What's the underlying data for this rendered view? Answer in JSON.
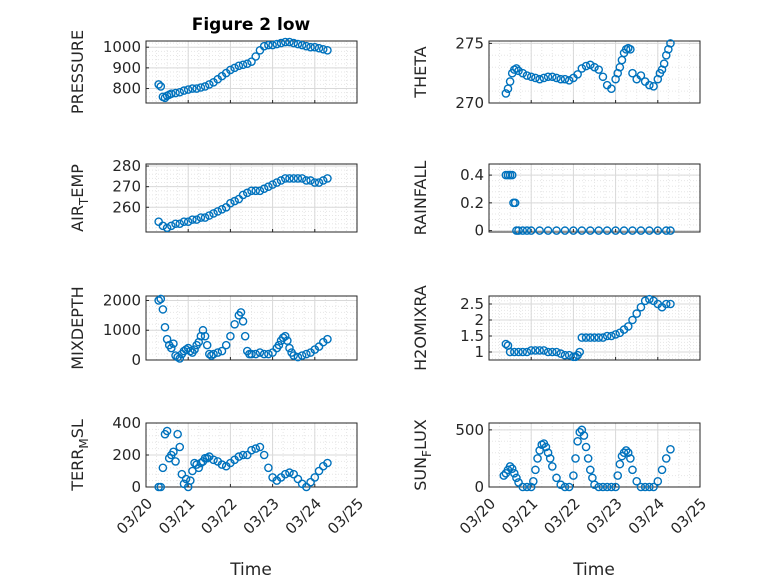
{
  "chart_data": {
    "type": "scatter",
    "title": "Figure 2 low",
    "xlabel": "Time",
    "marker": "open-circle",
    "marker_color": "#0072BD",
    "grid": true,
    "minor_grid": true,
    "x_ticks": [
      "03/20",
      "03/21",
      "03/22",
      "03/23",
      "03/24",
      "03/25"
    ],
    "panels": [
      {
        "id": "pressure",
        "ylabel": "PRESSURE",
        "ylim": [
          730,
          1030
        ],
        "yticks": [
          "800",
          "900",
          "1000"
        ],
        "ytick_values": [
          800,
          900,
          1000
        ],
        "xlim": [
          0,
          5
        ],
        "x": [
          0.3,
          0.35,
          0.4,
          0.45,
          0.5,
          0.55,
          0.6,
          0.7,
          0.8,
          0.9,
          1.0,
          1.1,
          1.2,
          1.3,
          1.4,
          1.5,
          1.6,
          1.7,
          1.8,
          1.9,
          2.0,
          2.1,
          2.2,
          2.3,
          2.4,
          2.5,
          2.6,
          2.7,
          2.8,
          2.9,
          3.0,
          3.1,
          3.2,
          3.3,
          3.4,
          3.5,
          3.6,
          3.7,
          3.8,
          3.9,
          4.0,
          4.1,
          4.2,
          4.3
        ],
        "y": [
          820,
          810,
          760,
          755,
          765,
          770,
          775,
          778,
          782,
          790,
          795,
          800,
          800,
          805,
          810,
          820,
          830,
          845,
          860,
          875,
          890,
          900,
          910,
          915,
          920,
          930,
          955,
          985,
          1005,
          1010,
          1010,
          1015,
          1020,
          1025,
          1025,
          1020,
          1015,
          1010,
          1005,
          1000,
          1000,
          995,
          990,
          985
        ]
      },
      {
        "id": "theta",
        "ylabel": "THETA",
        "ylim": [
          270,
          275.2
        ],
        "yticks": [
          "270",
          "275"
        ],
        "ytick_values": [
          270,
          275
        ],
        "xlim": [
          0,
          5
        ],
        "x": [
          0.4,
          0.45,
          0.5,
          0.55,
          0.6,
          0.65,
          0.7,
          0.8,
          0.9,
          1.0,
          1.1,
          1.2,
          1.3,
          1.4,
          1.5,
          1.6,
          1.7,
          1.8,
          1.9,
          2.0,
          2.1,
          2.2,
          2.3,
          2.4,
          2.5,
          2.6,
          2.7,
          2.8,
          2.9,
          3.0,
          3.05,
          3.1,
          3.15,
          3.2,
          3.25,
          3.3,
          3.35,
          3.4,
          3.5,
          3.6,
          3.7,
          3.8,
          3.9,
          4.0,
          4.05,
          4.1,
          4.15,
          4.2,
          4.25,
          4.3
        ],
        "y": [
          270.8,
          271.2,
          271.8,
          272.5,
          272.8,
          272.9,
          272.7,
          272.5,
          272.3,
          272.2,
          272.1,
          272.0,
          272.1,
          272.2,
          272.2,
          272.1,
          272.0,
          272.0,
          271.9,
          272.1,
          272.4,
          272.9,
          273.1,
          273.2,
          273.0,
          272.8,
          272.2,
          271.5,
          271.2,
          272.0,
          272.5,
          273.0,
          273.6,
          274.2,
          274.5,
          274.6,
          274.5,
          272.5,
          272.0,
          272.3,
          271.8,
          271.5,
          271.4,
          272.0,
          272.5,
          272.8,
          273.3,
          274.0,
          274.5,
          275.0
        ]
      },
      {
        "id": "airtemp",
        "ylabel": "AIR_TEMP",
        "ylim": [
          248,
          281
        ],
        "yticks": [
          "260",
          "270",
          "280"
        ],
        "ytick_values": [
          260,
          270,
          280
        ],
        "xlim": [
          0,
          5
        ],
        "x": [
          0.3,
          0.4,
          0.5,
          0.6,
          0.7,
          0.8,
          0.9,
          1.0,
          1.1,
          1.2,
          1.3,
          1.4,
          1.5,
          1.6,
          1.7,
          1.8,
          1.9,
          2.0,
          2.1,
          2.2,
          2.3,
          2.4,
          2.5,
          2.6,
          2.7,
          2.8,
          2.9,
          3.0,
          3.1,
          3.2,
          3.3,
          3.4,
          3.5,
          3.6,
          3.7,
          3.8,
          3.9,
          4.0,
          4.1,
          4.2,
          4.3
        ],
        "y": [
          253,
          251,
          250,
          251,
          252,
          252,
          253,
          253,
          254,
          254,
          255,
          255,
          256,
          257,
          258,
          259,
          260,
          262,
          263,
          264,
          266,
          267,
          268,
          268,
          268,
          269,
          270,
          271,
          272,
          273,
          274,
          274,
          274,
          274,
          274,
          273,
          273,
          272,
          272,
          273,
          274
        ]
      },
      {
        "id": "rainfall",
        "ylabel": "RAINFALL",
        "ylim": [
          -0.01,
          0.48
        ],
        "yticks": [
          "0",
          "0.2",
          "0.4"
        ],
        "ytick_values": [
          0,
          0.2,
          0.4
        ],
        "xlim": [
          0,
          5
        ],
        "x": [
          0.4,
          0.45,
          0.5,
          0.55,
          0.58,
          0.62,
          0.65,
          0.7,
          0.8,
          0.9,
          1.0,
          1.2,
          1.4,
          1.6,
          1.8,
          2.0,
          2.2,
          2.4,
          2.6,
          2.8,
          3.0,
          3.2,
          3.4,
          3.6,
          3.8,
          4.0,
          4.2,
          4.3
        ],
        "y": [
          0.4,
          0.4,
          0.4,
          0.4,
          0.2,
          0.2,
          0,
          0,
          0,
          0,
          0,
          0,
          0,
          0,
          0,
          0,
          0,
          0,
          0,
          0,
          0,
          0,
          0,
          0,
          0,
          0,
          0,
          0
        ]
      },
      {
        "id": "mixdepth",
        "ylabel": "MIXDEPTH",
        "ylim": [
          0,
          2150
        ],
        "yticks": [
          "0",
          "1000",
          "2000"
        ],
        "ytick_values": [
          0,
          1000,
          2000
        ],
        "xlim": [
          0,
          5
        ],
        "x": [
          0.3,
          0.35,
          0.4,
          0.45,
          0.5,
          0.55,
          0.6,
          0.65,
          0.7,
          0.75,
          0.8,
          0.85,
          0.9,
          0.95,
          1.0,
          1.05,
          1.1,
          1.15,
          1.2,
          1.25,
          1.3,
          1.35,
          1.4,
          1.45,
          1.5,
          1.55,
          1.6,
          1.7,
          1.8,
          1.9,
          2.0,
          2.1,
          2.2,
          2.25,
          2.3,
          2.35,
          2.4,
          2.45,
          2.5,
          2.6,
          2.7,
          2.8,
          2.9,
          3.0,
          3.1,
          3.15,
          3.2,
          3.25,
          3.3,
          3.35,
          3.4,
          3.45,
          3.5,
          3.6,
          3.7,
          3.8,
          3.9,
          4.0,
          4.1,
          4.2,
          4.3
        ],
        "y": [
          2000,
          2050,
          1700,
          1100,
          700,
          500,
          400,
          550,
          150,
          100,
          50,
          200,
          300,
          350,
          400,
          300,
          250,
          350,
          500,
          600,
          800,
          1000,
          800,
          500,
          200,
          150,
          200,
          250,
          300,
          500,
          800,
          1200,
          1500,
          1600,
          1300,
          800,
          300,
          200,
          200,
          200,
          250,
          200,
          200,
          250,
          400,
          500,
          650,
          750,
          800,
          650,
          400,
          250,
          150,
          100,
          150,
          200,
          250,
          350,
          450,
          600,
          700
        ]
      },
      {
        "id": "h2omixra",
        "ylabel": "H2OMIXRA",
        "ylim": [
          0.75,
          2.75
        ],
        "yticks": [
          "1",
          "1.5",
          "2",
          "2.5"
        ],
        "ytick_values": [
          1,
          1.5,
          2,
          2.5
        ],
        "xlim": [
          0,
          5
        ],
        "x": [
          0.4,
          0.45,
          0.5,
          0.6,
          0.7,
          0.8,
          0.9,
          1.0,
          1.1,
          1.2,
          1.3,
          1.4,
          1.5,
          1.6,
          1.7,
          1.8,
          1.9,
          2.0,
          2.05,
          2.1,
          2.15,
          2.2,
          2.3,
          2.4,
          2.5,
          2.6,
          2.7,
          2.8,
          2.9,
          3.0,
          3.1,
          3.2,
          3.3,
          3.4,
          3.5,
          3.6,
          3.7,
          3.8,
          3.9,
          4.0,
          4.1,
          4.2,
          4.3
        ],
        "y": [
          1.25,
          1.2,
          1.0,
          1.0,
          1.0,
          1.0,
          1.0,
          1.05,
          1.05,
          1.05,
          1.05,
          1.0,
          1.0,
          1.0,
          0.95,
          0.9,
          0.9,
          0.85,
          0.85,
          0.9,
          1.0,
          1.45,
          1.45,
          1.45,
          1.45,
          1.45,
          1.45,
          1.5,
          1.5,
          1.55,
          1.6,
          1.7,
          1.8,
          2.0,
          2.2,
          2.4,
          2.6,
          2.65,
          2.6,
          2.5,
          2.4,
          2.5,
          2.5
        ]
      },
      {
        "id": "terrmsl",
        "ylabel": "TERR_MSL",
        "ylim": [
          0,
          400
        ],
        "yticks": [
          "0",
          "200",
          "400"
        ],
        "ytick_values": [
          0,
          200,
          400
        ],
        "xlim": [
          0,
          5
        ],
        "x": [
          0.3,
          0.35,
          0.4,
          0.45,
          0.5,
          0.55,
          0.6,
          0.65,
          0.7,
          0.75,
          0.8,
          0.85,
          0.9,
          0.95,
          1.0,
          1.05,
          1.1,
          1.15,
          1.2,
          1.25,
          1.3,
          1.35,
          1.4,
          1.45,
          1.5,
          1.6,
          1.7,
          1.8,
          1.9,
          2.0,
          2.1,
          2.2,
          2.3,
          2.4,
          2.5,
          2.6,
          2.7,
          2.8,
          2.9,
          3.0,
          3.1,
          3.2,
          3.3,
          3.4,
          3.5,
          3.6,
          3.7,
          3.8,
          3.9,
          4.0,
          4.1,
          4.2,
          4.3
        ],
        "y": [
          0,
          0,
          120,
          330,
          350,
          180,
          200,
          220,
          160,
          330,
          250,
          80,
          20,
          50,
          0,
          40,
          100,
          150,
          140,
          120,
          150,
          160,
          180,
          180,
          190,
          170,
          160,
          140,
          130,
          150,
          170,
          190,
          200,
          200,
          230,
          240,
          250,
          200,
          120,
          60,
          40,
          60,
          80,
          90,
          80,
          50,
          20,
          0,
          30,
          60,
          100,
          130,
          150
        ]
      },
      {
        "id": "sunflux",
        "ylabel": "SUN_FLUX",
        "ylim": [
          0,
          560
        ],
        "yticks": [
          "0",
          "500"
        ],
        "ytick_values": [
          0,
          500
        ],
        "xlim": [
          0,
          5
        ],
        "x": [
          0.35,
          0.4,
          0.45,
          0.5,
          0.55,
          0.6,
          0.65,
          0.7,
          0.8,
          0.9,
          1.0,
          1.05,
          1.1,
          1.15,
          1.2,
          1.25,
          1.3,
          1.35,
          1.4,
          1.45,
          1.5,
          1.6,
          1.7,
          1.8,
          1.9,
          2.0,
          2.05,
          2.1,
          2.15,
          2.2,
          2.25,
          2.3,
          2.35,
          2.4,
          2.45,
          2.5,
          2.6,
          2.7,
          2.8,
          2.9,
          3.0,
          3.05,
          3.1,
          3.15,
          3.2,
          3.25,
          3.3,
          3.35,
          3.4,
          3.5,
          3.6,
          3.7,
          3.8,
          3.9,
          4.0,
          4.1,
          4.2,
          4.3
        ],
        "y": [
          100,
          120,
          150,
          180,
          160,
          120,
          80,
          40,
          0,
          0,
          0,
          50,
          150,
          250,
          320,
          370,
          380,
          350,
          300,
          250,
          180,
          80,
          20,
          0,
          0,
          100,
          250,
          400,
          480,
          500,
          450,
          350,
          250,
          150,
          80,
          20,
          0,
          0,
          0,
          0,
          0,
          100,
          200,
          270,
          300,
          320,
          300,
          250,
          150,
          50,
          0,
          0,
          0,
          0,
          50,
          150,
          250,
          330
        ]
      }
    ]
  }
}
